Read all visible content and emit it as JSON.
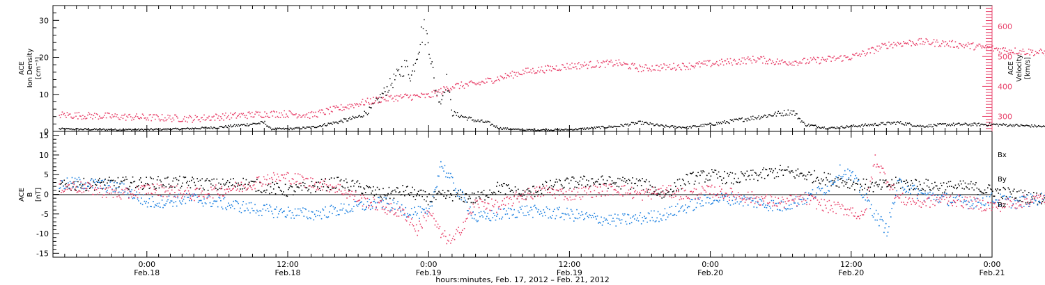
{
  "chart_data": [
    {
      "type": "scatter",
      "panel": "top",
      "ylabel_left": [
        "ACE",
        "Ion Density",
        "[cm⁻³]"
      ],
      "ylabel_right": [
        "ACE",
        "Velocity",
        "[km/s]"
      ],
      "ylim_left": [
        0,
        34
      ],
      "ylim_right": [
        250,
        670
      ],
      "yticks_left": [
        "0",
        "10",
        "20",
        "30"
      ],
      "yticks_right": [
        "300",
        "400",
        "500",
        "600"
      ],
      "right_axis_color": "#e8416a",
      "series": [
        {
          "name": "Ion Density",
          "axis": "left",
          "color": "#000000",
          "points": [
            [
              -7.5,
              0.8
            ],
            [
              -6,
              0.7
            ],
            [
              -3,
              0.6
            ],
            [
              0,
              0.6
            ],
            [
              3,
              0.8
            ],
            [
              6,
              1.2
            ],
            [
              8,
              1.8
            ],
            [
              10,
              2.5
            ],
            [
              10.5,
              0.8
            ],
            [
              12,
              0.8
            ],
            [
              14,
              1.2
            ],
            [
              16,
              2.5
            ],
            [
              18,
              4
            ],
            [
              19,
              6
            ],
            [
              20,
              10
            ],
            [
              21,
              14
            ],
            [
              22,
              18
            ],
            [
              22.5,
              15
            ],
            [
              23,
              22
            ],
            [
              23.5,
              28
            ],
            [
              24,
              24
            ],
            [
              24.5,
              12
            ],
            [
              25,
              8
            ],
            [
              25.5,
              14
            ],
            [
              26,
              5
            ],
            [
              27,
              4
            ],
            [
              28,
              3
            ],
            [
              29,
              2.5
            ],
            [
              30,
              1
            ],
            [
              32,
              0.5
            ],
            [
              36,
              0.6
            ],
            [
              40,
              1.5
            ],
            [
              42,
              2.5
            ],
            [
              44,
              1.5
            ],
            [
              46,
              1.2
            ],
            [
              48,
              2
            ],
            [
              50,
              3
            ],
            [
              52,
              4
            ],
            [
              54,
              5
            ],
            [
              55,
              5.5
            ],
            [
              56,
              2
            ],
            [
              58,
              1
            ],
            [
              60,
              1.5
            ],
            [
              62,
              2
            ],
            [
              64,
              2.5
            ],
            [
              66,
              1.5
            ],
            [
              68,
              2
            ],
            [
              72,
              2
            ],
            [
              76,
              1.5
            ],
            [
              78,
              1
            ]
          ]
        },
        {
          "name": "Velocity",
          "axis": "right",
          "color": "#e8416a",
          "points": [
            [
              -7.5,
              307
            ],
            [
              -6,
              305
            ],
            [
              -4,
              303
            ],
            [
              -2,
              300
            ],
            [
              0,
              298
            ],
            [
              2,
              296
            ],
            [
              4,
              294
            ],
            [
              6,
              300
            ],
            [
              8,
              305
            ],
            [
              10,
              310
            ],
            [
              12,
              310
            ],
            [
              14,
              306
            ],
            [
              16,
              325
            ],
            [
              18,
              345
            ],
            [
              20,
              360
            ],
            [
              22,
              367
            ],
            [
              24,
              370
            ],
            [
              26,
              402
            ],
            [
              28,
              410
            ],
            [
              30,
              430
            ],
            [
              32,
              450
            ],
            [
              34,
              460
            ],
            [
              36,
              470
            ],
            [
              38,
              475
            ],
            [
              40,
              480
            ],
            [
              42,
              462
            ],
            [
              44,
              466
            ],
            [
              46,
              470
            ],
            [
              48,
              478
            ],
            [
              50,
              485
            ],
            [
              52,
              493
            ],
            [
              54,
              482
            ],
            [
              56,
              485
            ],
            [
              58,
              492
            ],
            [
              60,
              500
            ],
            [
              61,
              512
            ],
            [
              62,
              525
            ],
            [
              63,
              540
            ],
            [
              64,
              545
            ],
            [
              66,
              550
            ],
            [
              68,
              545
            ],
            [
              70,
              538
            ],
            [
              72,
              528
            ],
            [
              74,
              520
            ],
            [
              76,
              515
            ],
            [
              78,
              512
            ]
          ]
        }
      ]
    },
    {
      "type": "scatter",
      "panel": "bottom",
      "ylabel": [
        "ACE",
        "B",
        "[nT]"
      ],
      "ylim": [
        -16,
        16
      ],
      "yticks": [
        "-15",
        "-10",
        "-5",
        "0",
        "5",
        "10",
        "15"
      ],
      "legend": [
        "Bx",
        "By",
        "Bz"
      ],
      "legend_position": "right",
      "series": [
        {
          "name": "Bx",
          "color": "#000000",
          "points": [
            [
              -7.5,
              2
            ],
            [
              -6,
              2.5
            ],
            [
              -4,
              2.8
            ],
            [
              -2,
              3
            ],
            [
              0,
              3
            ],
            [
              2,
              3.2
            ],
            [
              4,
              3
            ],
            [
              6,
              2.5
            ],
            [
              8,
              3
            ],
            [
              10,
              2
            ],
            [
              12,
              1
            ],
            [
              14,
              2
            ],
            [
              16,
              3
            ],
            [
              18,
              2
            ],
            [
              20,
              0
            ],
            [
              22,
              1
            ],
            [
              24,
              -1
            ],
            [
              26,
              0
            ],
            [
              28,
              -1
            ],
            [
              30,
              2
            ],
            [
              32,
              0
            ],
            [
              34,
              2
            ],
            [
              36,
              3
            ],
            [
              38,
              3.5
            ],
            [
              40,
              3
            ],
            [
              42,
              3
            ],
            [
              44,
              0
            ],
            [
              46,
              4
            ],
            [
              48,
              5
            ],
            [
              50,
              4
            ],
            [
              52,
              5
            ],
            [
              54,
              6
            ],
            [
              56,
              5
            ],
            [
              58,
              4
            ],
            [
              60,
              3
            ],
            [
              62,
              2
            ],
            [
              64,
              3
            ],
            [
              66,
              2.5
            ],
            [
              68,
              2
            ],
            [
              70,
              2
            ],
            [
              72,
              1
            ],
            [
              74,
              0
            ],
            [
              76,
              -1
            ],
            [
              78,
              -2
            ]
          ]
        },
        {
          "name": "By",
          "color": "#1a7fe0",
          "points": [
            [
              -7.5,
              2.5
            ],
            [
              -6,
              3
            ],
            [
              -4,
              2.5
            ],
            [
              -2,
              1.5
            ],
            [
              0,
              -2
            ],
            [
              2,
              -1.5
            ],
            [
              4,
              -1
            ],
            [
              6,
              -2
            ],
            [
              8,
              -3
            ],
            [
              10,
              -4
            ],
            [
              12,
              -4.5
            ],
            [
              14,
              -5
            ],
            [
              16,
              -4
            ],
            [
              18,
              -3
            ],
            [
              20,
              -2
            ],
            [
              22,
              -4
            ],
            [
              24,
              -5
            ],
            [
              25,
              8
            ],
            [
              26,
              3
            ],
            [
              28,
              -6
            ],
            [
              30,
              -5
            ],
            [
              32,
              -4
            ],
            [
              34,
              -4.5
            ],
            [
              36,
              -5
            ],
            [
              38,
              -6
            ],
            [
              40,
              -6.5
            ],
            [
              42,
              -6
            ],
            [
              44,
              -5
            ],
            [
              46,
              -3
            ],
            [
              48,
              -1
            ],
            [
              50,
              -1
            ],
            [
              52,
              -2
            ],
            [
              54,
              -3
            ],
            [
              56,
              -1
            ],
            [
              58,
              2
            ],
            [
              59,
              6
            ],
            [
              60,
              5
            ],
            [
              62,
              -5
            ],
            [
              63,
              -9
            ],
            [
              64,
              3
            ],
            [
              66,
              0
            ],
            [
              68,
              -1
            ],
            [
              70,
              -2
            ],
            [
              72,
              -1
            ],
            [
              74,
              -2
            ],
            [
              76,
              -1
            ],
            [
              78,
              -2
            ]
          ]
        },
        {
          "name": "Bz",
          "color": "#e8416a",
          "points": [
            [
              -7.5,
              2
            ],
            [
              -6,
              2
            ],
            [
              -4,
              1
            ],
            [
              -2,
              0
            ],
            [
              0,
              1.5
            ],
            [
              2,
              1
            ],
            [
              4,
              0
            ],
            [
              6,
              1
            ],
            [
              8,
              2
            ],
            [
              10,
              4
            ],
            [
              12,
              4.5
            ],
            [
              14,
              3
            ],
            [
              16,
              2
            ],
            [
              18,
              -1
            ],
            [
              20,
              -3
            ],
            [
              22,
              -5
            ],
            [
              23,
              -9
            ],
            [
              24,
              -4
            ],
            [
              25,
              -10
            ],
            [
              26,
              -12
            ],
            [
              28,
              -2
            ],
            [
              30,
              -3
            ],
            [
              32,
              0
            ],
            [
              34,
              1
            ],
            [
              36,
              0
            ],
            [
              38,
              1
            ],
            [
              40,
              1.5
            ],
            [
              42,
              0
            ],
            [
              44,
              1
            ],
            [
              46,
              0
            ],
            [
              48,
              1
            ],
            [
              50,
              0
            ],
            [
              52,
              -1
            ],
            [
              54,
              -2
            ],
            [
              56,
              -1
            ],
            [
              58,
              -3
            ],
            [
              60,
              -4
            ],
            [
              61,
              -6
            ],
            [
              62,
              9
            ],
            [
              63,
              4
            ],
            [
              64,
              -1
            ],
            [
              66,
              -2
            ],
            [
              68,
              -1
            ],
            [
              70,
              -2
            ],
            [
              72,
              -3
            ],
            [
              74,
              -2
            ],
            [
              76,
              -1
            ],
            [
              78,
              0
            ]
          ]
        }
      ]
    }
  ],
  "x_axis": {
    "tick_labels": [
      {
        "time": "0:00",
        "date": "Feb.18",
        "hours": 0
      },
      {
        "time": "12:00",
        "date": "Feb.18",
        "hours": 12
      },
      {
        "time": "0:00",
        "date": "Feb.19",
        "hours": 24
      },
      {
        "time": "12:00",
        "date": "Feb.19",
        "hours": 36
      },
      {
        "time": "0:00",
        "date": "Feb.20",
        "hours": 48
      },
      {
        "time": "12:00",
        "date": "Feb.20",
        "hours": 60
      },
      {
        "time": "0:00",
        "date": "Feb.21",
        "hours": 72
      }
    ],
    "title": "hours:minutes, Feb. 17, 2012 – Feb. 21, 2012",
    "xlim_hours": [
      -8,
      72
    ]
  }
}
